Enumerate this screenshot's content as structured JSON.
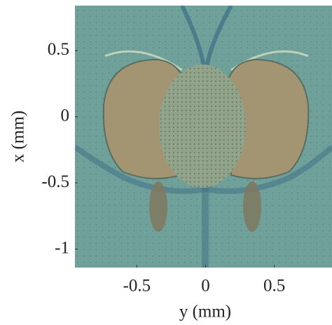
{
  "chart_data": {
    "type": "image",
    "x_label": "y (mm)",
    "y_label": "x (mm)",
    "xlim": [
      -0.95,
      0.92
    ],
    "ylim": [
      -1.14,
      0.84
    ],
    "xticks": [
      -0.5,
      0,
      0.5
    ],
    "yticks": [
      -1,
      -0.5,
      0,
      0.5
    ]
  }
}
